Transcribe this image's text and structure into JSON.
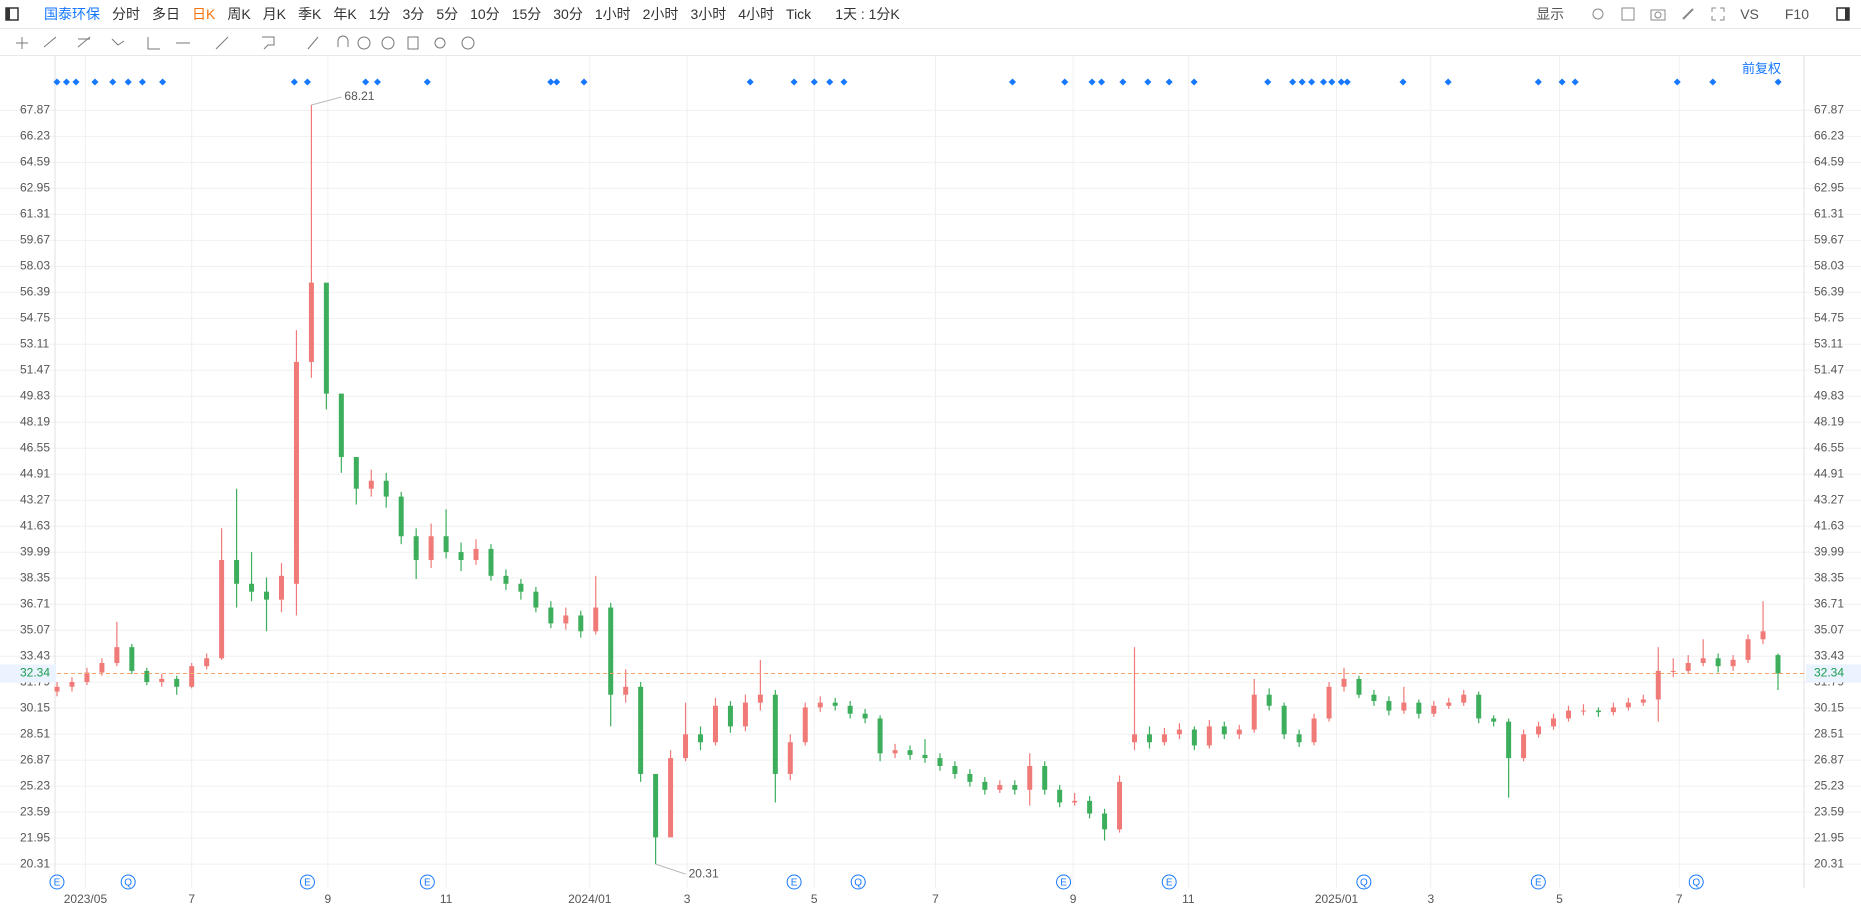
{
  "toolbar": {
    "stock": "国泰环保",
    "periods": [
      "分时",
      "多日",
      "日K",
      "周K",
      "月K",
      "季K",
      "年K",
      "1分",
      "3分",
      "5分",
      "10分",
      "15分",
      "30分",
      "1小时",
      "2小时",
      "3小时",
      "4小时",
      "Tick"
    ],
    "period_select": "1天 : 1分K",
    "display": "显示",
    "vs": "VS",
    "f10": "F10",
    "adjust": "前复权"
  },
  "chart_data": {
    "type": "candlestick",
    "up_color": "#f07a78",
    "down_color": "#3dae5c",
    "ylim": [
      19.56,
      69.22
    ],
    "yticks": [
      20.31,
      21.95,
      23.59,
      25.23,
      26.87,
      28.51,
      30.15,
      31.79,
      33.43,
      35.07,
      36.71,
      38.35,
      39.99,
      41.63,
      43.27,
      44.91,
      46.55,
      48.19,
      49.83,
      51.47,
      53.11,
      54.75,
      56.39,
      58.03,
      59.67,
      61.31,
      62.95,
      64.59,
      66.23,
      67.87
    ],
    "grid": true,
    "x_labels": [
      "2023/05",
      "7",
      "9",
      "11",
      "2024/01",
      "3",
      "5",
      "7",
      "9",
      "11",
      "2025/01",
      "3",
      "5",
      "7"
    ],
    "last_price": 32.34,
    "max_label": "68.21",
    "min_label": "20.31",
    "event_markers": [
      "E",
      "Q",
      "E",
      "E",
      "E",
      "Q",
      "E",
      "E",
      "Q",
      "E",
      "Q"
    ],
    "values": [
      [
        31.2,
        31.8,
        30.9,
        31.5
      ],
      [
        31.5,
        32.1,
        31.2,
        31.8
      ],
      [
        31.8,
        32.7,
        31.6,
        32.4
      ],
      [
        32.4,
        33.3,
        32.2,
        33.0
      ],
      [
        33.0,
        35.6,
        32.8,
        34.0
      ],
      [
        34.0,
        34.2,
        32.3,
        32.5
      ],
      [
        32.5,
        32.7,
        31.6,
        31.8
      ],
      [
        31.8,
        32.3,
        31.5,
        32.0
      ],
      [
        32.0,
        32.2,
        31.0,
        31.5
      ],
      [
        31.5,
        33.0,
        31.4,
        32.8
      ],
      [
        32.8,
        33.6,
        32.6,
        33.3
      ],
      [
        33.3,
        41.5,
        33.2,
        39.5
      ],
      [
        39.5,
        44.0,
        36.5,
        38.0
      ],
      [
        38.0,
        40.0,
        36.9,
        37.5
      ],
      [
        37.5,
        38.4,
        35.0,
        37.0
      ],
      [
        37.0,
        39.3,
        36.2,
        38.5
      ],
      [
        38.0,
        54.0,
        36.0,
        52.0
      ],
      [
        52.0,
        68.21,
        51.0,
        57.0
      ],
      [
        57.0,
        55.0,
        49.0,
        50.0
      ],
      [
        50.0,
        48.0,
        45.0,
        46.0
      ],
      [
        46.0,
        45.0,
        43.0,
        44.0
      ],
      [
        44.0,
        45.2,
        43.5,
        44.5
      ],
      [
        44.5,
        45.0,
        42.8,
        43.5
      ],
      [
        43.5,
        43.8,
        40.5,
        41.0
      ],
      [
        41.0,
        41.5,
        38.3,
        39.5
      ],
      [
        39.5,
        41.8,
        39.0,
        41.0
      ],
      [
        41.0,
        42.7,
        39.6,
        40.0
      ],
      [
        40.0,
        40.6,
        38.8,
        39.5
      ],
      [
        39.5,
        40.8,
        39.2,
        40.2
      ],
      [
        40.2,
        40.5,
        38.2,
        38.5
      ],
      [
        38.5,
        38.9,
        37.6,
        38.0
      ],
      [
        38.0,
        38.3,
        37.0,
        37.5
      ],
      [
        37.5,
        37.8,
        36.2,
        36.5
      ],
      [
        36.5,
        36.9,
        35.2,
        35.5
      ],
      [
        35.5,
        36.5,
        35.1,
        36.0
      ],
      [
        36.0,
        36.3,
        34.6,
        35.0
      ],
      [
        35.0,
        38.5,
        34.8,
        36.5
      ],
      [
        36.5,
        36.8,
        29.0,
        31.0
      ],
      [
        31.0,
        32.6,
        30.5,
        31.5
      ],
      [
        31.5,
        31.8,
        25.5,
        26.0
      ],
      [
        26.0,
        24.0,
        20.31,
        22.0
      ],
      [
        22.0,
        27.5,
        23.0,
        27.0
      ],
      [
        27.0,
        30.5,
        26.8,
        28.5
      ],
      [
        28.5,
        29.0,
        27.5,
        28.0
      ],
      [
        28.0,
        30.8,
        27.8,
        30.3
      ],
      [
        30.3,
        30.6,
        28.6,
        29.0
      ],
      [
        29.0,
        31.0,
        28.7,
        30.5
      ],
      [
        30.5,
        33.2,
        30.0,
        31.0
      ],
      [
        31.0,
        31.3,
        24.2,
        26.0
      ],
      [
        26.0,
        28.5,
        25.6,
        28.0
      ],
      [
        28.0,
        30.5,
        27.8,
        30.2
      ],
      [
        30.2,
        30.9,
        29.9,
        30.5
      ],
      [
        30.5,
        30.8,
        30.0,
        30.3
      ],
      [
        30.3,
        30.6,
        29.5,
        29.8
      ],
      [
        29.8,
        30.1,
        29.2,
        29.5
      ],
      [
        29.5,
        29.7,
        26.8,
        27.3
      ],
      [
        27.3,
        27.9,
        27.0,
        27.5
      ],
      [
        27.5,
        27.8,
        26.9,
        27.2
      ],
      [
        27.2,
        28.2,
        26.7,
        27.0
      ],
      [
        27.0,
        27.3,
        26.2,
        26.5
      ],
      [
        26.5,
        26.8,
        25.7,
        26.0
      ],
      [
        26.0,
        26.3,
        25.2,
        25.5
      ],
      [
        25.5,
        25.8,
        24.7,
        25.0
      ],
      [
        25.0,
        25.6,
        24.8,
        25.3
      ],
      [
        25.3,
        25.6,
        24.7,
        25.0
      ],
      [
        25.0,
        27.3,
        24.0,
        26.5
      ],
      [
        26.5,
        26.8,
        24.7,
        25.0
      ],
      [
        25.0,
        25.3,
        23.9,
        24.2
      ],
      [
        24.2,
        24.8,
        24.0,
        24.3
      ],
      [
        24.3,
        24.6,
        23.2,
        23.5
      ],
      [
        23.5,
        23.8,
        21.8,
        22.5
      ],
      [
        22.5,
        25.9,
        22.3,
        25.5
      ],
      [
        28.0,
        34.0,
        27.5,
        28.5
      ],
      [
        28.5,
        29.0,
        27.6,
        28.0
      ],
      [
        28.0,
        28.9,
        27.8,
        28.5
      ],
      [
        28.5,
        29.2,
        28.2,
        28.8
      ],
      [
        28.8,
        29.0,
        27.5,
        27.8
      ],
      [
        27.8,
        29.4,
        27.6,
        29.0
      ],
      [
        29.0,
        29.3,
        28.2,
        28.5
      ],
      [
        28.5,
        29.1,
        28.2,
        28.8
      ],
      [
        28.8,
        32.0,
        28.6,
        31.0
      ],
      [
        31.0,
        31.4,
        30.0,
        30.3
      ],
      [
        30.3,
        30.5,
        28.2,
        28.5
      ],
      [
        28.5,
        28.8,
        27.7,
        28.0
      ],
      [
        28.0,
        29.8,
        27.8,
        29.5
      ],
      [
        29.5,
        31.8,
        29.3,
        31.5
      ],
      [
        31.5,
        32.7,
        31.2,
        32.0
      ],
      [
        32.0,
        32.2,
        30.8,
        31.0
      ],
      [
        31.0,
        31.3,
        30.3,
        30.6
      ],
      [
        30.6,
        30.9,
        29.7,
        30.0
      ],
      [
        30.0,
        31.5,
        29.8,
        30.5
      ],
      [
        30.5,
        30.7,
        29.5,
        29.8
      ],
      [
        29.8,
        30.6,
        29.6,
        30.3
      ],
      [
        30.3,
        30.8,
        30.1,
        30.5
      ],
      [
        30.5,
        31.3,
        30.3,
        31.0
      ],
      [
        31.0,
        31.2,
        29.2,
        29.5
      ],
      [
        29.5,
        29.7,
        29.0,
        29.3
      ],
      [
        29.3,
        29.5,
        24.5,
        27.0
      ],
      [
        27.0,
        28.8,
        26.8,
        28.5
      ],
      [
        28.5,
        29.3,
        28.3,
        29.0
      ],
      [
        29.0,
        29.8,
        28.8,
        29.5
      ],
      [
        29.5,
        30.3,
        29.3,
        30.0
      ],
      [
        30.0,
        30.4,
        29.7,
        30.0
      ],
      [
        30.0,
        30.2,
        29.6,
        29.9
      ],
      [
        29.9,
        30.5,
        29.7,
        30.2
      ],
      [
        30.2,
        30.8,
        30.0,
        30.5
      ],
      [
        30.5,
        31.0,
        30.3,
        30.7
      ],
      [
        30.7,
        34.0,
        29.3,
        32.5
      ],
      [
        32.5,
        33.3,
        32.1,
        32.5
      ],
      [
        32.5,
        33.5,
        32.3,
        33.0
      ],
      [
        33.0,
        34.5,
        32.8,
        33.3
      ],
      [
        33.3,
        33.6,
        32.4,
        32.8
      ],
      [
        32.8,
        33.5,
        32.5,
        33.2
      ],
      [
        33.2,
        34.8,
        33.0,
        34.5
      ],
      [
        34.5,
        36.9,
        34.2,
        35.0
      ],
      [
        33.5,
        33.6,
        31.3,
        32.34
      ]
    ]
  }
}
